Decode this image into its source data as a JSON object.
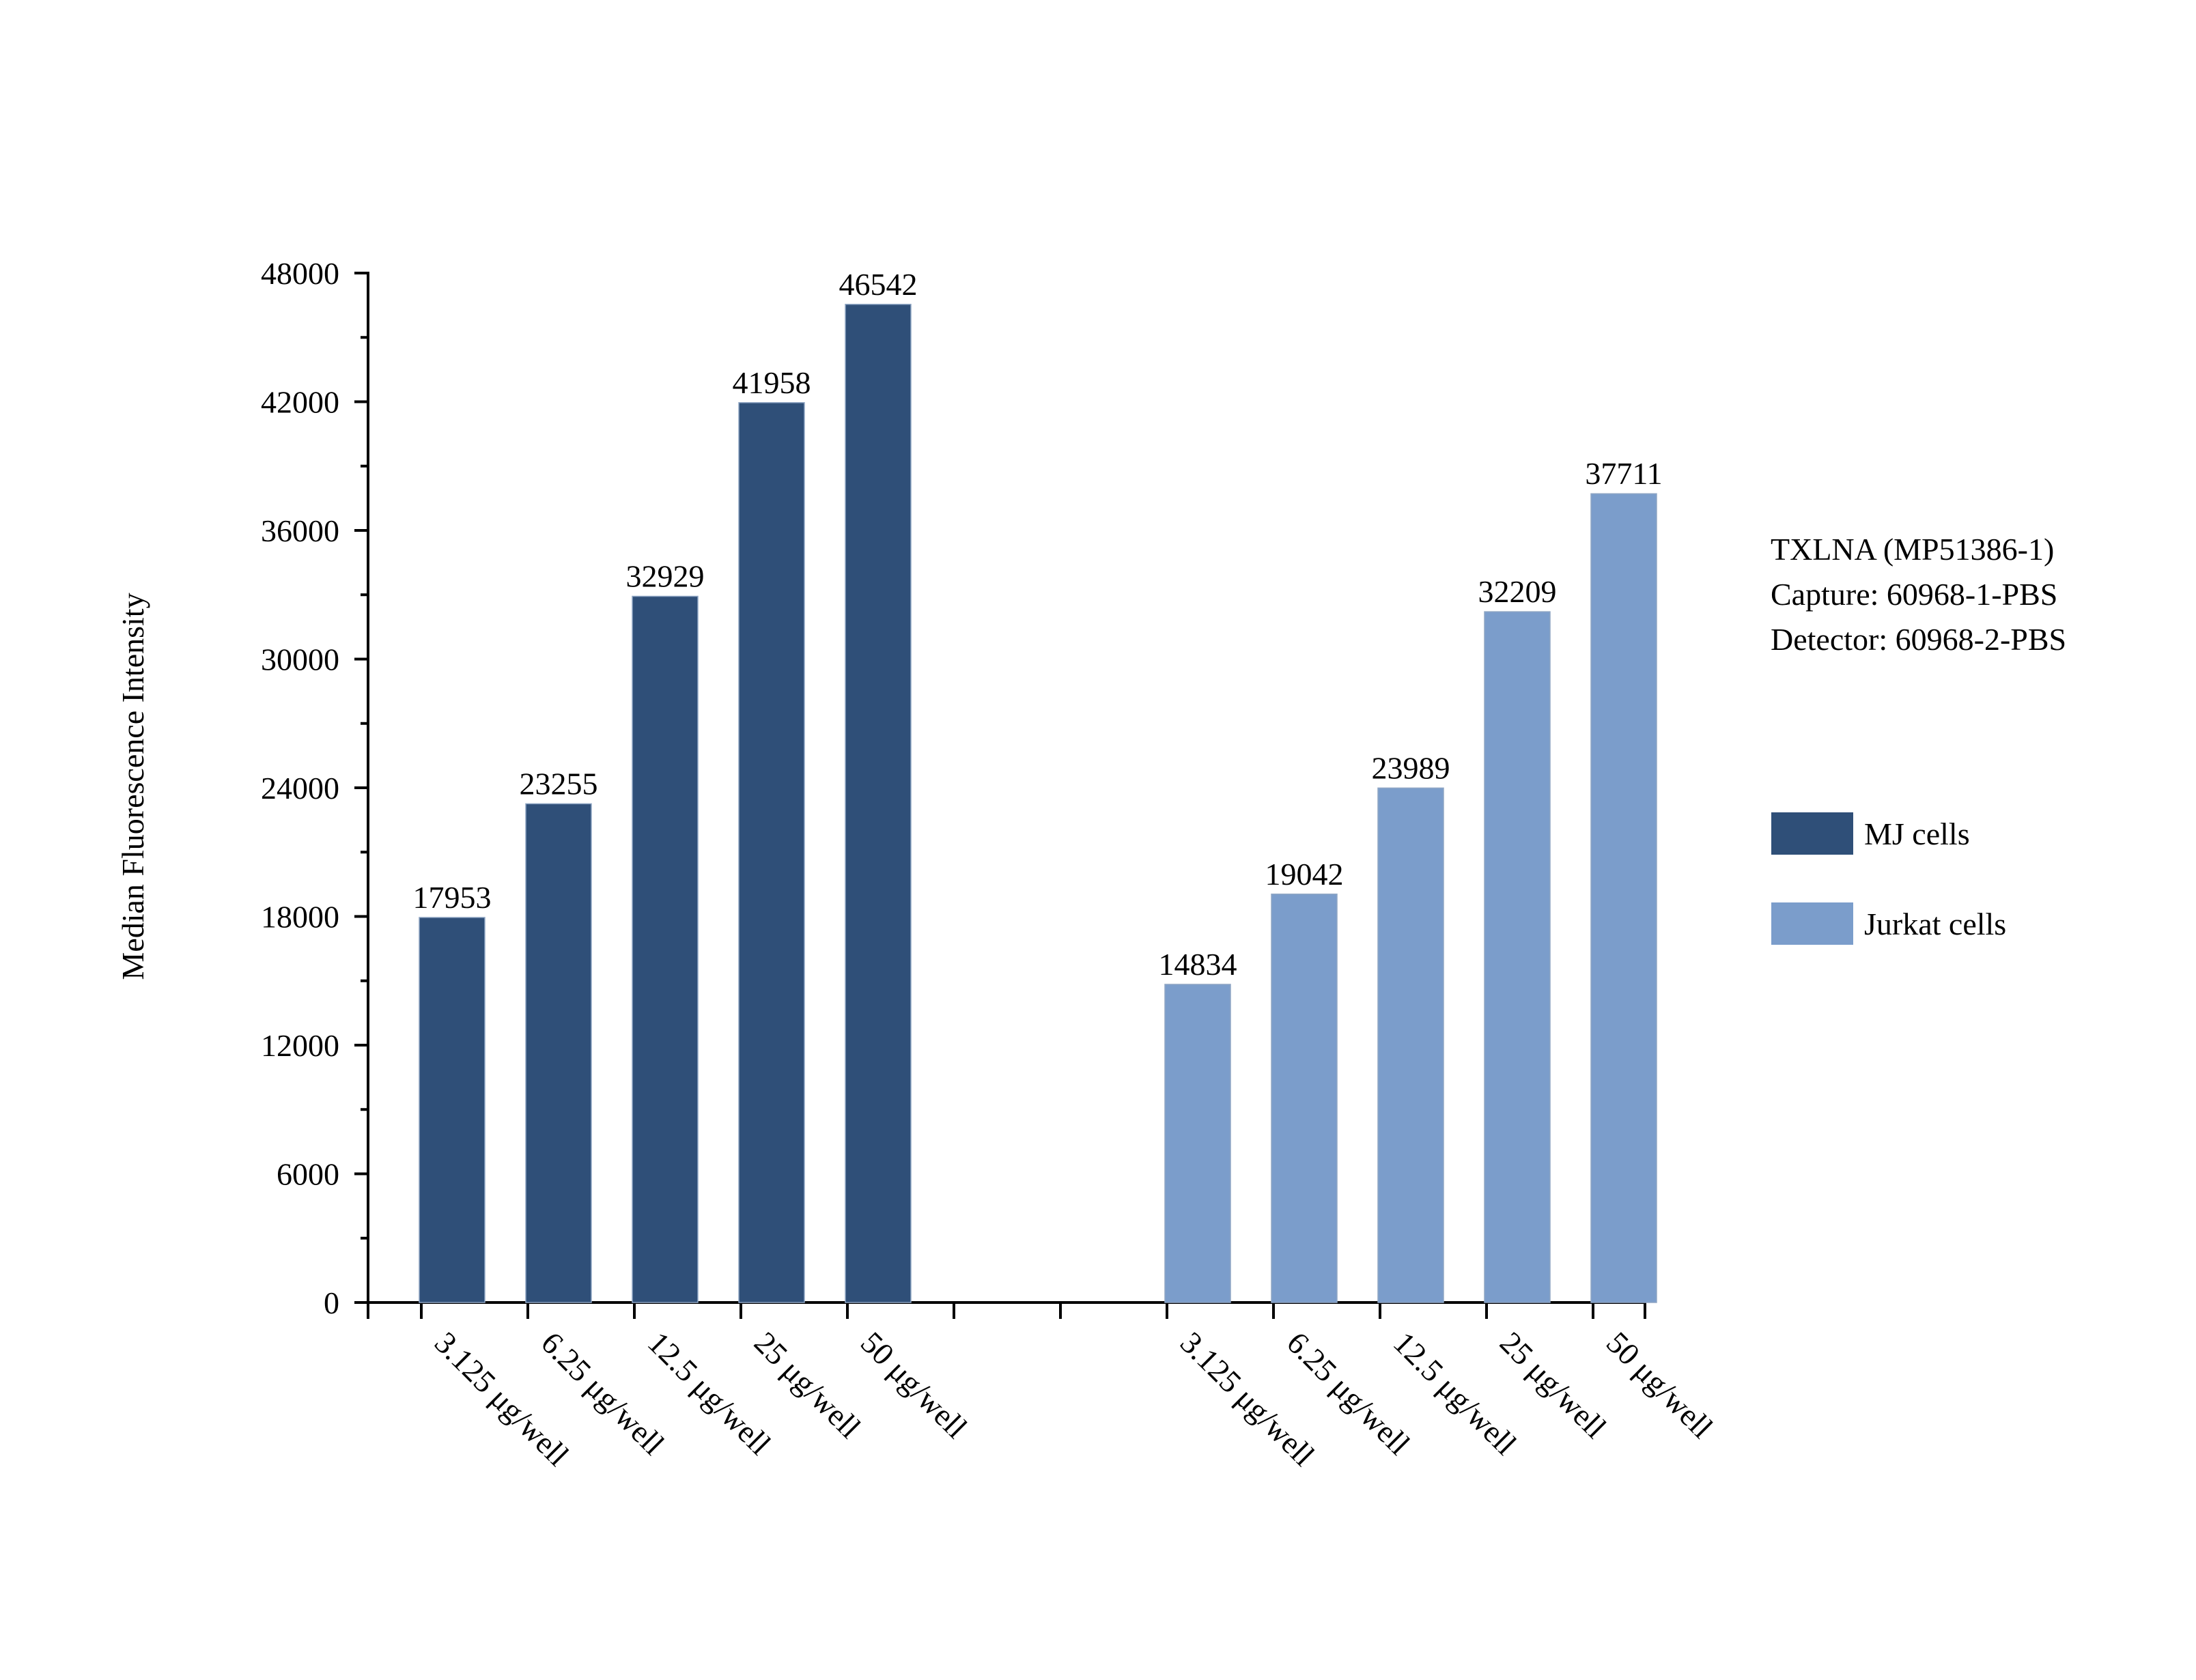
{
  "info_box": {
    "line1": "TXLNA (MP51386-1)",
    "line2": "Capture: 60968-1-PBS",
    "line3": "Detector: 60968-2-PBS"
  },
  "chart_data": {
    "type": "bar",
    "title": "",
    "xlabel": "",
    "ylabel": "Median Fluorescence Intensity",
    "ylim": [
      0,
      48000
    ],
    "yticks": [
      0,
      6000,
      12000,
      18000,
      24000,
      30000,
      36000,
      42000,
      48000
    ],
    "grid": false,
    "legend_position": "right",
    "groups": [
      {
        "name": "MJ cells",
        "color": "#2F4F78",
        "categories": [
          "3.125 μg/well",
          "6.25 μg/well",
          "12.5 μg/well",
          "25 μg/well",
          "50 μg/well"
        ],
        "values": [
          17953,
          23255,
          32929,
          41958,
          46542
        ]
      },
      {
        "name": "Jurkat cells",
        "color": "#7B9DCB",
        "categories": [
          "3.125 μg/well",
          "6.25 μg/well",
          "12.5 μg/well",
          "25 μg/well",
          "50 μg/well"
        ],
        "values": [
          14834,
          19042,
          23989,
          32209,
          37711
        ]
      }
    ]
  }
}
